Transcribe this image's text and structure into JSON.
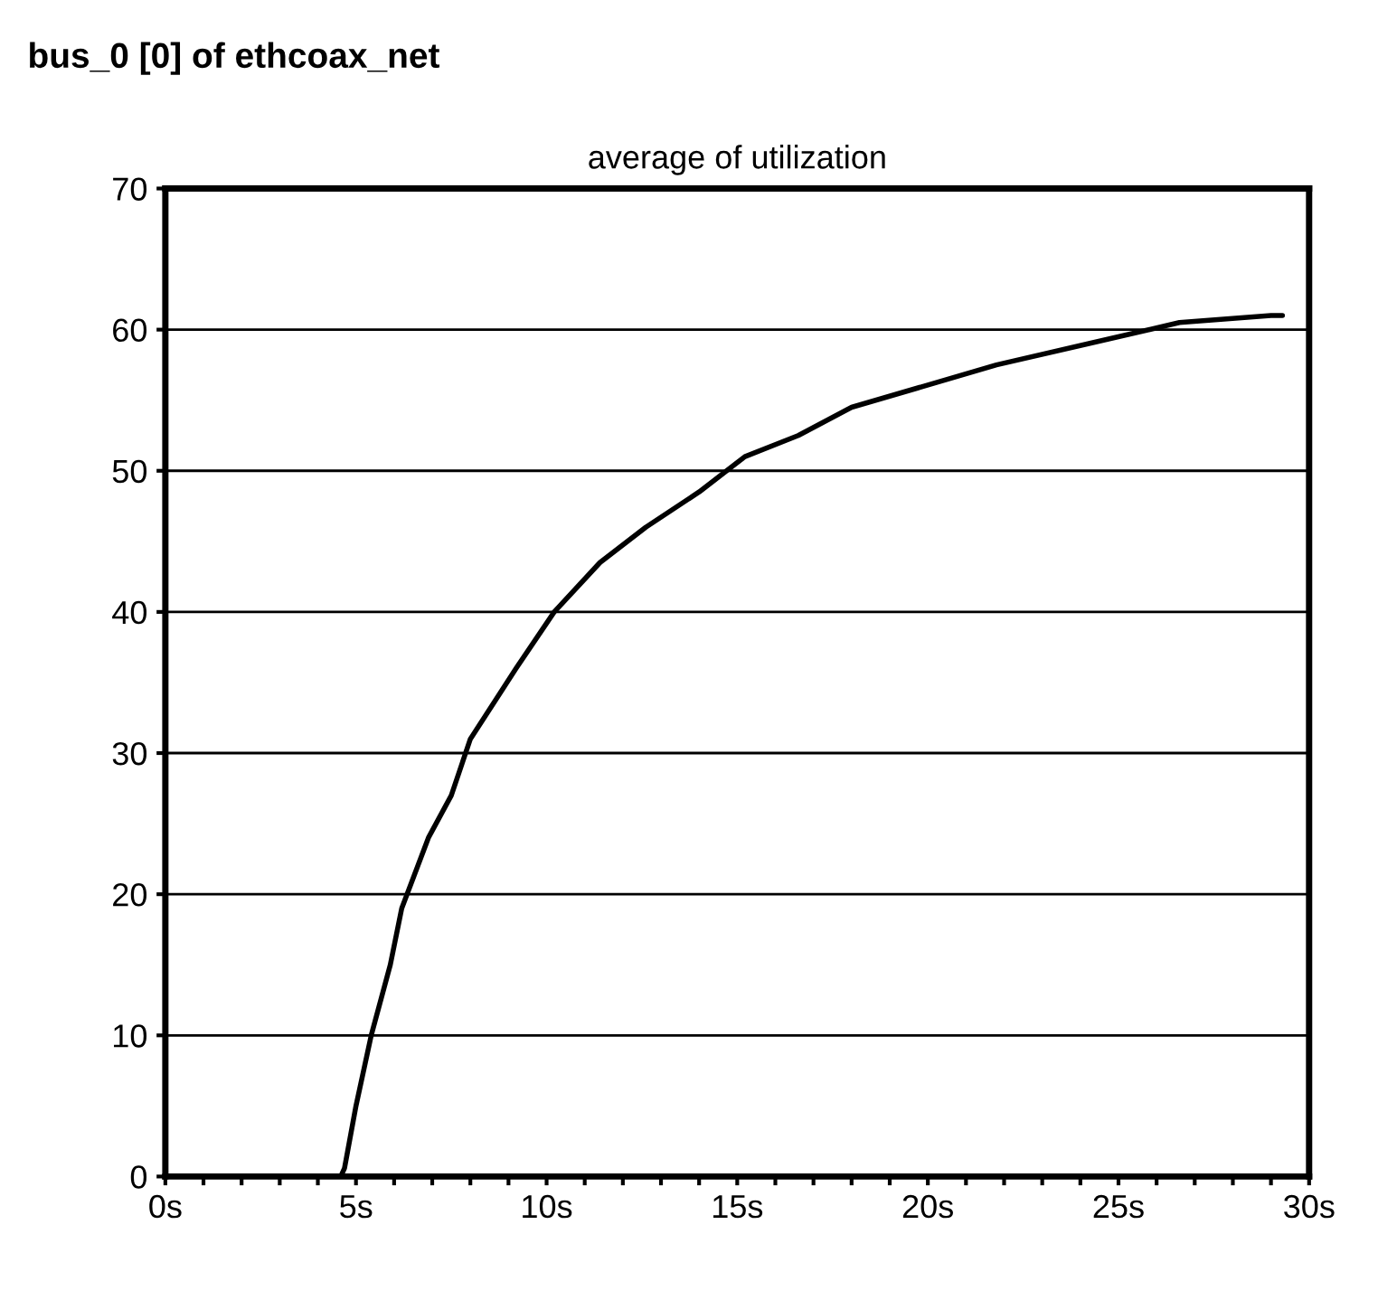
{
  "chart_data": {
    "type": "line",
    "title": "bus_0 [0] of ethcoax_net",
    "subtitle": "average of utilization",
    "x": [
      0,
      4.6,
      4.7,
      5.0,
      5.4,
      5.9,
      6.2,
      6.9,
      7.5,
      8.0,
      9.2,
      10.2,
      11.4,
      12.6,
      14.0,
      15.2,
      16.6,
      18.0,
      19.9,
      21.8,
      24.2,
      26.6,
      29.0,
      29.3
    ],
    "series": [
      {
        "color": "#000000",
        "values": [
          0,
          0,
          0.6,
          5,
          10,
          15,
          19,
          24,
          27,
          31,
          36,
          40,
          43.5,
          46,
          48.5,
          51,
          52.5,
          54.5,
          56,
          57.5,
          59,
          60.5,
          61,
          61
        ]
      }
    ],
    "xlim": [
      0,
      30
    ],
    "ylim": [
      0,
      70
    ],
    "xticks": [
      {
        "value": 0,
        "label": "0s"
      },
      {
        "value": 1,
        "label": null
      },
      {
        "value": 2,
        "label": null
      },
      {
        "value": 3,
        "label": null
      },
      {
        "value": 4,
        "label": null
      },
      {
        "value": 5,
        "label": "5s"
      },
      {
        "value": 6,
        "label": null
      },
      {
        "value": 7,
        "label": null
      },
      {
        "value": 8,
        "label": null
      },
      {
        "value": 9,
        "label": null
      },
      {
        "value": 10,
        "label": "10s"
      },
      {
        "value": 11,
        "label": null
      },
      {
        "value": 12,
        "label": null
      },
      {
        "value": 13,
        "label": null
      },
      {
        "value": 14,
        "label": null
      },
      {
        "value": 15,
        "label": "15s"
      },
      {
        "value": 16,
        "label": null
      },
      {
        "value": 17,
        "label": null
      },
      {
        "value": 18,
        "label": null
      },
      {
        "value": 19,
        "label": null
      },
      {
        "value": 20,
        "label": "20s"
      },
      {
        "value": 21,
        "label": null
      },
      {
        "value": 22,
        "label": null
      },
      {
        "value": 23,
        "label": null
      },
      {
        "value": 24,
        "label": null
      },
      {
        "value": 25,
        "label": "25s"
      },
      {
        "value": 26,
        "label": null
      },
      {
        "value": 27,
        "label": null
      },
      {
        "value": 28,
        "label": null
      },
      {
        "value": 29,
        "label": null
      },
      {
        "value": 30,
        "label": "30s"
      }
    ],
    "yticks": [
      0,
      10,
      20,
      30,
      40,
      50,
      60,
      70
    ],
    "grid": "y",
    "line_style": "solid"
  }
}
